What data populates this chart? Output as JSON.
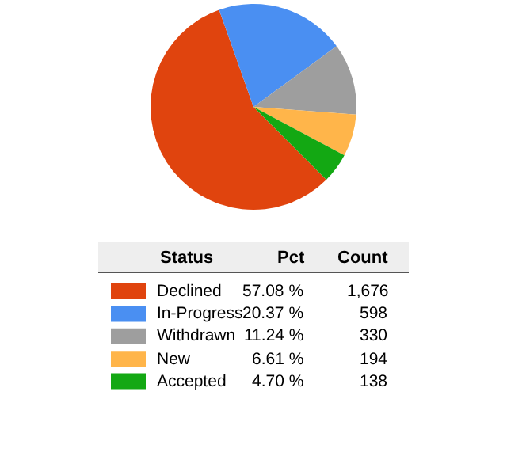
{
  "chart_data": {
    "type": "pie",
    "categories": [
      "Declined",
      "In-Progress",
      "Withdrawn",
      "New",
      "Accepted"
    ],
    "values": [
      57.08,
      20.37,
      11.24,
      6.61,
      4.7
    ],
    "colors": [
      "#e0440e",
      "#4a8ff2",
      "#9e9e9e",
      "#ffb54a",
      "#13a813"
    ],
    "value_labels": [
      "57.08 %",
      "20.37 %",
      "11.24 %",
      "6.61 %",
      "4.70 %"
    ],
    "legend_title": "Status",
    "annotations": [
      "Pct",
      "Count",
      "1,676",
      "598",
      "330",
      "194",
      "138"
    ],
    "legend": "bottom"
  }
}
